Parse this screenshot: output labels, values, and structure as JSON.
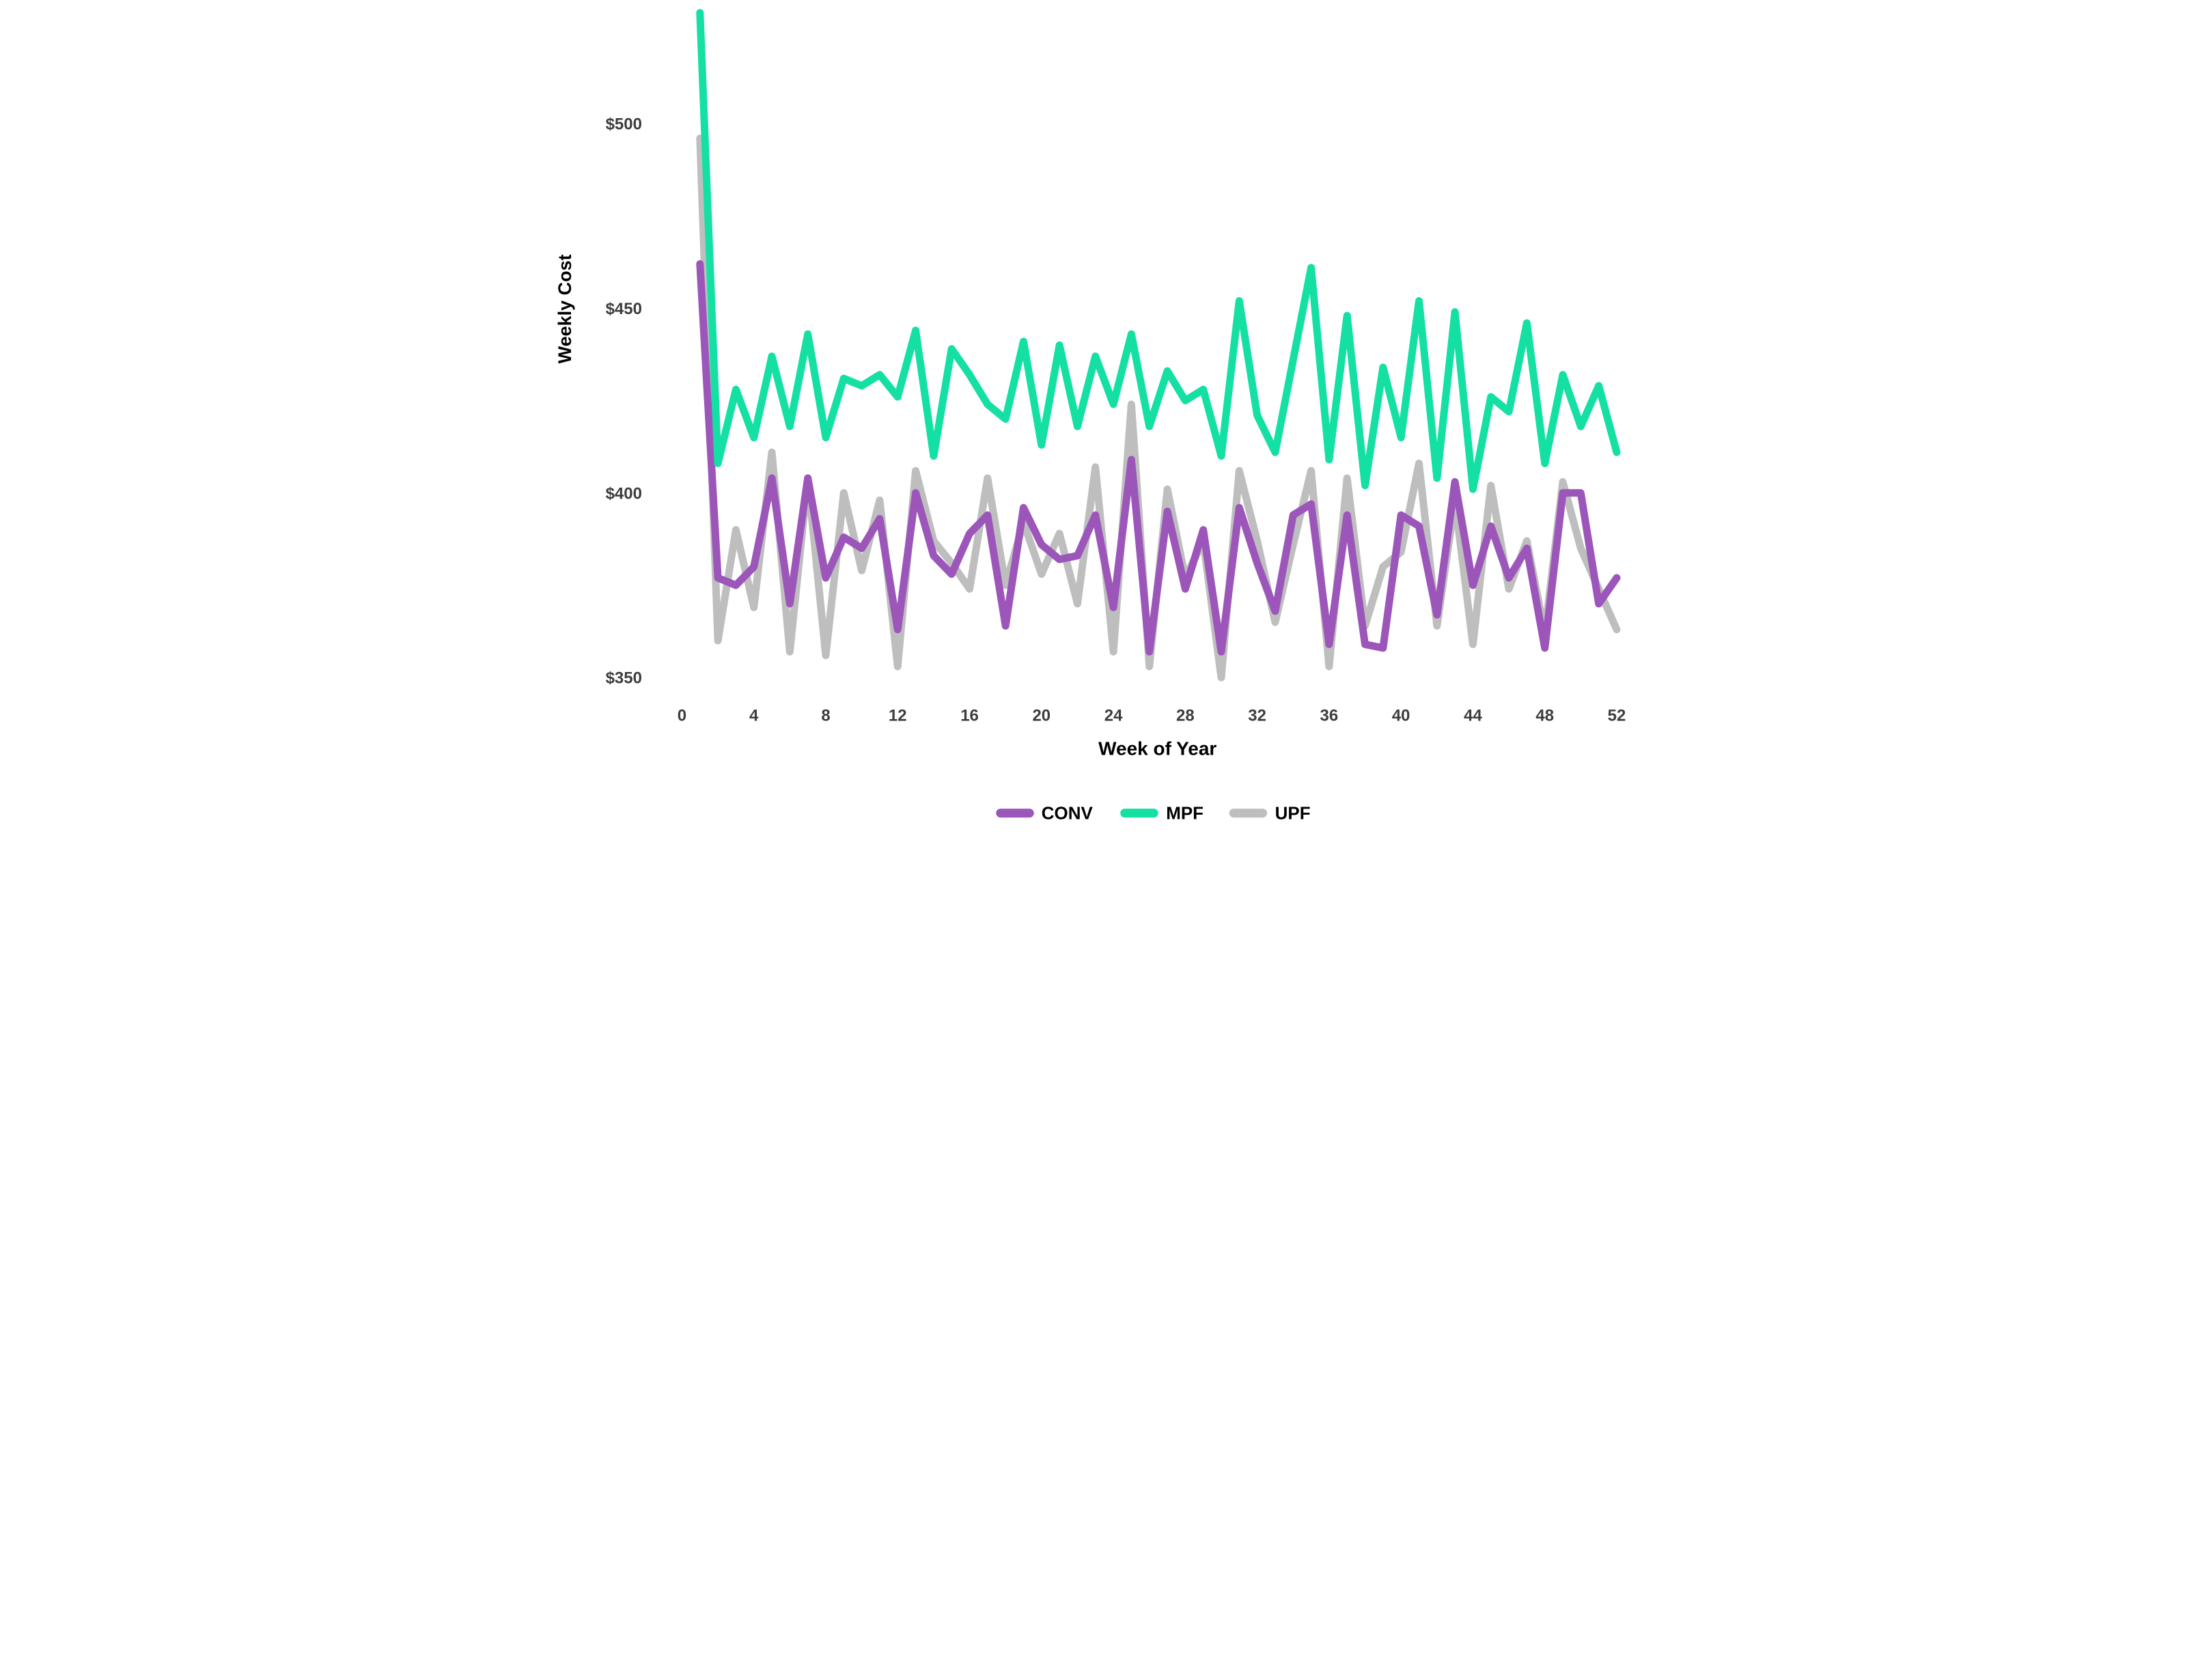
{
  "chart_data": {
    "type": "line",
    "title": "",
    "xlabel": "Week of Year",
    "ylabel": "Weekly Cost",
    "legend_position": "bottom-center",
    "grid": false,
    "x_range": [
      0,
      52
    ],
    "y_axis_calibration": {
      "value_at_top_tick": 500,
      "value_at_bottom_tick": 350
    },
    "x": [
      1,
      2,
      3,
      4,
      5,
      6,
      7,
      8,
      9,
      10,
      11,
      12,
      13,
      14,
      15,
      16,
      17,
      18,
      19,
      20,
      21,
      22,
      23,
      24,
      25,
      26,
      27,
      28,
      29,
      30,
      31,
      32,
      33,
      34,
      35,
      36,
      37,
      38,
      39,
      40,
      41,
      42,
      43,
      44,
      45,
      46,
      47,
      48,
      49,
      50,
      51,
      52
    ],
    "series": [
      {
        "name": "CONV",
        "color": "#9C56BA",
        "values": [
          462,
          377,
          375,
          380,
          404,
          370,
          404,
          377,
          388,
          385,
          393,
          363,
          400,
          383,
          378,
          389,
          394,
          364,
          396,
          386,
          382,
          383,
          394,
          369,
          409,
          357,
          395,
          374,
          390,
          357,
          396,
          381,
          368,
          394,
          397,
          359,
          394,
          359,
          358,
          394,
          391,
          367,
          403,
          375,
          391,
          377,
          385,
          358,
          400,
          400,
          370,
          377
        ]
      },
      {
        "name": "MPF",
        "color": "#15E0A4",
        "values": [
          530,
          408,
          428,
          415,
          437,
          418,
          443,
          415,
          431,
          429,
          432,
          426,
          444,
          410,
          439,
          432,
          424,
          420,
          441,
          413,
          440,
          418,
          437,
          424,
          443,
          418,
          433,
          425,
          428,
          410,
          452,
          421,
          411,
          436,
          461,
          409,
          448,
          402,
          434,
          415,
          452,
          404,
          449,
          401,
          426,
          422,
          446,
          408,
          432,
          418,
          429,
          411
        ]
      },
      {
        "name": "UPF",
        "color": "#BEBEBE",
        "values": [
          496,
          360,
          390,
          369,
          411,
          357,
          404,
          356,
          400,
          379,
          398,
          353,
          406,
          387,
          381,
          374,
          404,
          375,
          392,
          378,
          389,
          370,
          407,
          357,
          424,
          353,
          401,
          377,
          387,
          350,
          406,
          387,
          365,
          386,
          406,
          353,
          404,
          364,
          380,
          384,
          408,
          364,
          398,
          359,
          402,
          374,
          387,
          362,
          403,
          385,
          374,
          363
        ]
      }
    ],
    "y_ticks": [
      {
        "label": "$500",
        "value": 500
      },
      {
        "label": "$450",
        "value": 450
      },
      {
        "label": "$400",
        "value": 400
      },
      {
        "label": "$350",
        "value": 350
      }
    ],
    "x_ticks": [
      {
        "label": "0",
        "value": 0
      },
      {
        "label": "4",
        "value": 4
      },
      {
        "label": "8",
        "value": 8
      },
      {
        "label": "12",
        "value": 12
      },
      {
        "label": "16",
        "value": 16
      },
      {
        "label": "20",
        "value": 20
      },
      {
        "label": "24",
        "value": 24
      },
      {
        "label": "28",
        "value": 28
      },
      {
        "label": "32",
        "value": 32
      },
      {
        "label": "36",
        "value": 36
      },
      {
        "label": "40",
        "value": 40
      },
      {
        "label": "44",
        "value": 44
      },
      {
        "label": "48",
        "value": 48
      },
      {
        "label": "52",
        "value": 52
      }
    ],
    "legend": {
      "items": [
        {
          "label": "CONV",
          "color": "#9C56BA"
        },
        {
          "label": "MPF",
          "color": "#15E0A4"
        },
        {
          "label": "UPF",
          "color": "#BEBEBE"
        }
      ]
    }
  }
}
